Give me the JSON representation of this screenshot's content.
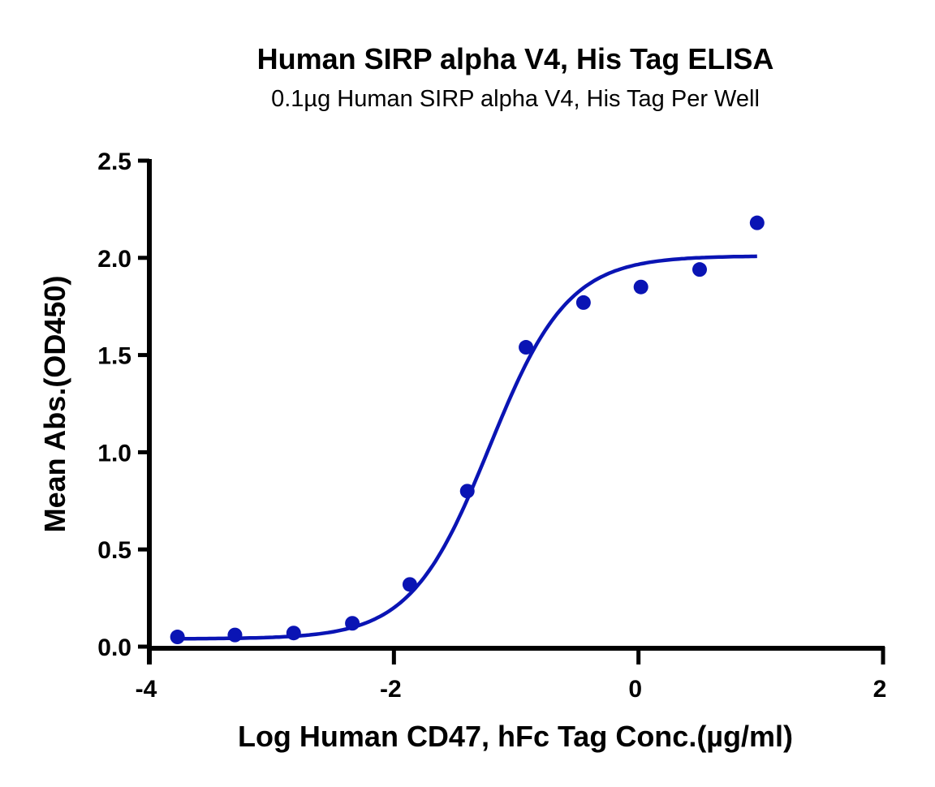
{
  "chart_data": {
    "type": "scatter",
    "title": "Human SIRP alpha V4, His Tag ELISA",
    "subtitle": "0.1µg Human SIRP alpha V4, His Tag Per Well",
    "xlabel": "Log Human CD47, hFc Tag Conc.(µg/ml)",
    "ylabel": "Mean Abs.(OD450)",
    "xlim": [
      -4,
      2
    ],
    "ylim": [
      0,
      2.5
    ],
    "xticks": [
      "-4",
      "-2",
      "0",
      "2"
    ],
    "yticks": [
      "0.0",
      "0.5",
      "1.0",
      "1.5",
      "2.0",
      "2.5"
    ],
    "grid": false,
    "legend": null,
    "series": [
      {
        "name": "Human CD47, hFc Tag",
        "color": "#0a14b4",
        "x": [
          -3.77,
          -3.3,
          -2.82,
          -2.34,
          -1.87,
          -1.4,
          -0.92,
          -0.45,
          0.02,
          0.5,
          0.97
        ],
        "y": [
          0.05,
          0.06,
          0.07,
          0.12,
          0.32,
          0.8,
          1.54,
          1.77,
          1.85,
          1.94,
          2.18
        ]
      }
    ],
    "fit": {
      "model": "4PL",
      "bottom": 0.04,
      "top": 2.01,
      "logEC50": -1.22,
      "hill": 1.35,
      "x_range": [
        -3.77,
        0.97
      ]
    }
  }
}
